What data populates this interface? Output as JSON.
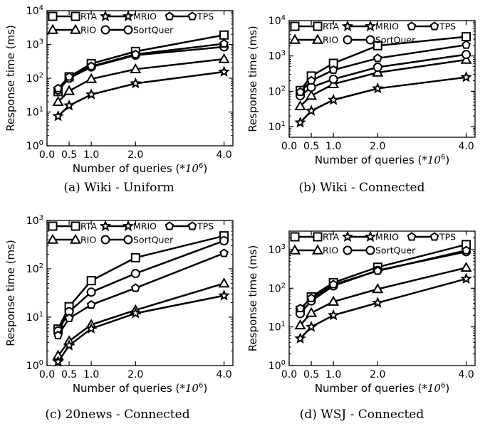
{
  "figure": {
    "captions": [
      "(a) Wiki - Uniform",
      "(b) Wiki - Connected",
      "(c) 20news - Connected",
      "(d) WSJ - Connected"
    ]
  },
  "chart_data": [
    {
      "type": "line",
      "caption": "(a) Wiki - Uniform",
      "xlabel": "Number of queries (*10⁶)",
      "ylabel": "Response time (ms)",
      "yscale": "log",
      "xlim": [
        0.0,
        4.2
      ],
      "ylim": [
        1,
        10000
      ],
      "xticks": [
        0.0,
        0.5,
        1.0,
        2.0,
        4.0
      ],
      "xtick_labels": [
        "0.0",
        "0.5",
        "1.0",
        "2.0",
        "4.0"
      ],
      "yticks": [
        1,
        10,
        100,
        1000,
        10000
      ],
      "ytick_labels": [
        "10⁰",
        "10¹",
        "10²",
        "10³",
        "10⁴"
      ],
      "legend": "top",
      "x": [
        0.25,
        0.5,
        1.0,
        2.0,
        4.0
      ],
      "series": [
        {
          "name": "RTA",
          "marker": "square",
          "values": [
            40,
            110,
            270,
            620,
            1900
          ]
        },
        {
          "name": "RIO",
          "marker": "triangle",
          "values": [
            20,
            42,
            95,
            185,
            370
          ]
        },
        {
          "name": "MRIO",
          "marker": "star",
          "values": [
            7.5,
            15.5,
            33,
            70,
            155
          ]
        },
        {
          "name": "SortQuer",
          "marker": "circle",
          "values": [
            45,
            100,
            215,
            480,
            850
          ]
        },
        {
          "name": "TPS",
          "marker": "pentagon",
          "values": [
            50,
            110,
            225,
            510,
            1050
          ]
        }
      ]
    },
    {
      "type": "line",
      "caption": "(b) Wiki - Connected",
      "xlabel": "Number of queries (*10⁶)",
      "ylabel": "Response time (ms)",
      "yscale": "log",
      "xlim": [
        0.0,
        4.2
      ],
      "ylim": [
        5,
        10000
      ],
      "xticks": [
        0.0,
        0.5,
        1.0,
        2.0,
        4.0
      ],
      "xtick_labels": [
        "0.0",
        "0.5",
        "1.0",
        "2.0",
        "4.0"
      ],
      "yticks": [
        10,
        100,
        1000,
        10000
      ],
      "ytick_labels": [
        "10¹",
        "10²",
        "10³",
        "10⁴"
      ],
      "legend": "top",
      "x": [
        0.25,
        0.5,
        1.0,
        2.0,
        4.0
      ],
      "series": [
        {
          "name": "RTA",
          "marker": "square",
          "values": [
            105,
            270,
            620,
            1950,
            3500
          ]
        },
        {
          "name": "RIO",
          "marker": "triangle",
          "values": [
            38,
            75,
            160,
            340,
            780
          ]
        },
        {
          "name": "MRIO",
          "marker": "star",
          "values": [
            13,
            28,
            57,
            120,
            250
          ]
        },
        {
          "name": "SortQuer",
          "marker": "circle",
          "values": [
            75,
            130,
            220,
            480,
            1100
          ]
        },
        {
          "name": "TPS",
          "marker": "pentagon",
          "values": [
            95,
            200,
            400,
            860,
            2050
          ]
        }
      ]
    },
    {
      "type": "line",
      "caption": "(c) 20news - Connected",
      "xlabel": "Number of queries (*10⁶)",
      "ylabel": "Response time (ms)",
      "yscale": "log",
      "xlim": [
        0.0,
        4.2
      ],
      "ylim": [
        1,
        1000
      ],
      "xticks": [
        0.0,
        0.5,
        1.0,
        2.0,
        4.0
      ],
      "xtick_labels": [
        "0.0",
        "0.5",
        "1.0",
        "2.0",
        "4.0"
      ],
      "yticks": [
        1,
        10,
        100,
        1000
      ],
      "ytick_labels": [
        "10⁰",
        "10¹",
        "10²",
        "10³"
      ],
      "legend": "top",
      "x": [
        0.25,
        0.5,
        1.0,
        2.0,
        4.0
      ],
      "series": [
        {
          "name": "RTA",
          "marker": "square",
          "values": [
            5.7,
            16.5,
            57,
            170,
            480
          ]
        },
        {
          "name": "RIO",
          "marker": "triangle",
          "values": [
            1.6,
            3.2,
            7.0,
            14,
            50
          ]
        },
        {
          "name": "MRIO",
          "marker": "star",
          "values": [
            1.2,
            2.6,
            5.8,
            12,
            28
          ]
        },
        {
          "name": "SortQuer",
          "marker": "circle",
          "values": [
            5.2,
            13,
            33,
            80,
            380
          ]
        },
        {
          "name": "TPS",
          "marker": "pentagon",
          "values": [
            4.2,
            9.5,
            18,
            40,
            210
          ]
        }
      ]
    },
    {
      "type": "line",
      "caption": "(d) WSJ - Connected",
      "xlabel": "Number of queries (*10⁶)",
      "ylabel": "Response time (ms)",
      "yscale": "log",
      "xlim": [
        0.0,
        4.2
      ],
      "ylim": [
        1,
        3000
      ],
      "xticks": [
        0.0,
        0.5,
        1.0,
        2.0,
        4.0
      ],
      "xtick_labels": [
        "0.0",
        "0.5",
        "1.0",
        "2.0",
        "4.0"
      ],
      "yticks": [
        1,
        10,
        100,
        1000
      ],
      "ytick_labels": [
        "10⁰",
        "10¹",
        "10²",
        "10³"
      ],
      "legend": "top",
      "x": [
        0.25,
        0.5,
        1.0,
        2.0,
        4.0
      ],
      "series": [
        {
          "name": "RTA",
          "marker": "square",
          "values": [
            27,
            60,
            140,
            350,
            1350
          ]
        },
        {
          "name": "RIO",
          "marker": "triangle",
          "values": [
            11,
            23,
            45,
            95,
            340
          ]
        },
        {
          "name": "MRIO",
          "marker": "star",
          "values": [
            5,
            10,
            20,
            42,
            175
          ]
        },
        {
          "name": "SortQuer",
          "marker": "circle",
          "values": [
            22,
            47,
            115,
            290,
            880
          ]
        },
        {
          "name": "TPS",
          "marker": "pentagon",
          "values": [
            30,
            55,
            125,
            280,
            950
          ]
        }
      ]
    }
  ]
}
